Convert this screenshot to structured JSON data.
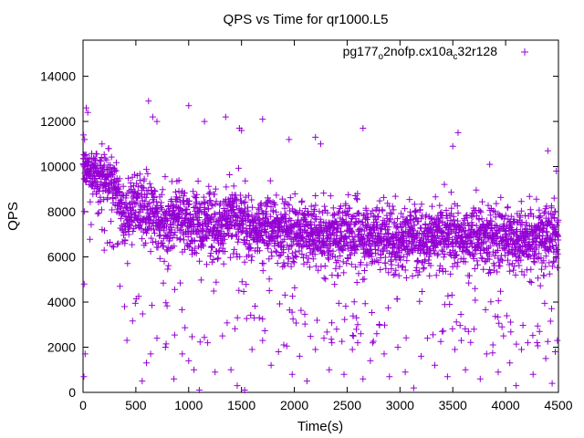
{
  "chart_data": {
    "type": "scatter",
    "title": "QPS vs Time for qr1000.L5",
    "xlabel": "Time(s)",
    "ylabel": "QPS",
    "xlim": [
      0,
      4500
    ],
    "ylim": [
      0,
      15600
    ],
    "xticks": [
      0,
      500,
      1000,
      1500,
      2000,
      2500,
      3000,
      3500,
      4000,
      4500
    ],
    "yticks": [
      0,
      2000,
      4000,
      6000,
      8000,
      10000,
      12000,
      14000
    ],
    "grid": false,
    "legend_position": "top-right",
    "marker": "+",
    "series": [
      {
        "name": "pg177_o2nofp.cx10a_c32r128",
        "name_parts": [
          "pg177",
          "o",
          "2nofp.cx10a",
          "c",
          "32r128"
        ],
        "color": "#9400d3",
        "band": {
          "x": [
            0,
            100,
            200,
            300,
            400,
            500,
            600,
            700,
            800,
            900,
            1000,
            1100,
            1200,
            1300,
            1400,
            1500,
            1600,
            1700,
            1800,
            1900,
            2000,
            2100,
            2200,
            2300,
            2400,
            2500,
            2600,
            2700,
            2800,
            2900,
            3000,
            3100,
            3200,
            3300,
            3400,
            3500,
            3600,
            3700,
            3800,
            3900,
            4000,
            4100,
            4200,
            4300,
            4400,
            4500
          ],
          "center": [
            9800,
            9700,
            9500,
            9300,
            7500,
            8200,
            8000,
            7800,
            7400,
            8000,
            7600,
            7400,
            7700,
            7300,
            7800,
            7600,
            7100,
            7400,
            7300,
            7200,
            7000,
            7200,
            7100,
            7000,
            6900,
            7100,
            7000,
            6900,
            7000,
            6900,
            6800,
            7000,
            6900,
            6800,
            7000,
            6900,
            6800,
            6900,
            7000,
            6800,
            6900,
            6800,
            6900,
            6800,
            7000,
            6900
          ],
          "spread": [
            1100,
            1000,
            1000,
            1100,
            1800,
            1700,
            1700,
            1600,
            1700,
            1700,
            1600,
            1700,
            1700,
            1700,
            1700,
            1600,
            1600,
            1600,
            1600,
            1600,
            1600,
            1600,
            1600,
            1600,
            1600,
            1600,
            1600,
            1600,
            1600,
            1600,
            1600,
            1600,
            1600,
            1600,
            1600,
            1600,
            1600,
            1600,
            1600,
            1600,
            1600,
            1600,
            1600,
            1600,
            1600,
            1600
          ],
          "count": 3000
        },
        "outliers": [
          [
            5,
            11400
          ],
          [
            15,
            11200
          ],
          [
            30,
            12600
          ],
          [
            45,
            12400
          ],
          [
            10,
            4800
          ],
          [
            20,
            1700
          ],
          [
            8,
            700
          ],
          [
            180,
            11000
          ],
          [
            240,
            10800
          ],
          [
            200,
            6300
          ],
          [
            620,
            12900
          ],
          [
            660,
            12200
          ],
          [
            700,
            12000
          ],
          [
            1000,
            12700
          ],
          [
            1150,
            12000
          ],
          [
            1480,
            11700
          ],
          [
            1500,
            11600
          ],
          [
            1700,
            12100
          ],
          [
            1950,
            11200
          ],
          [
            2200,
            11300
          ],
          [
            2250,
            11000
          ],
          [
            2650,
            11700
          ],
          [
            3550,
            11500
          ],
          [
            3500,
            10900
          ],
          [
            3850,
            10100
          ],
          [
            4400,
            10700
          ],
          [
            4480,
            9800
          ],
          [
            1350,
            12200
          ],
          [
            560,
            500
          ],
          [
            600,
            1300
          ],
          [
            640,
            1700
          ],
          [
            700,
            2400
          ],
          [
            780,
            2000
          ],
          [
            860,
            600
          ],
          [
            940,
            1700
          ],
          [
            1000,
            1400
          ],
          [
            1050,
            1000
          ],
          [
            1100,
            100
          ],
          [
            1180,
            2200
          ],
          [
            1250,
            900
          ],
          [
            1320,
            2500
          ],
          [
            1400,
            1000
          ],
          [
            1460,
            300
          ],
          [
            1530,
            100
          ],
          [
            1600,
            1900
          ],
          [
            1700,
            2300
          ],
          [
            1780,
            1200
          ],
          [
            1850,
            1800
          ],
          [
            1900,
            2100
          ],
          [
            1980,
            800
          ],
          [
            2050,
            1600
          ],
          [
            2120,
            500
          ],
          [
            2200,
            1900
          ],
          [
            2280,
            2400
          ],
          [
            2330,
            1000
          ],
          [
            2400,
            2800
          ],
          [
            2470,
            800
          ],
          [
            2550,
            1900
          ],
          [
            2600,
            2200
          ],
          [
            2650,
            600
          ],
          [
            2720,
            1400
          ],
          [
            2780,
            2600
          ],
          [
            2850,
            1700
          ],
          [
            2900,
            700
          ],
          [
            2980,
            2000
          ],
          [
            3050,
            900
          ],
          [
            3130,
            200
          ],
          [
            3200,
            1600
          ],
          [
            3260,
            2400
          ],
          [
            3330,
            1200
          ],
          [
            3400,
            2700
          ],
          [
            3450,
            700
          ],
          [
            3520,
            1900
          ],
          [
            3580,
            2300
          ],
          [
            3620,
            1000
          ],
          [
            3700,
            2800
          ],
          [
            3760,
            600
          ],
          [
            3820,
            1700
          ],
          [
            3880,
            2100
          ],
          [
            3930,
            900
          ],
          [
            3980,
            2500
          ],
          [
            4040,
            1300
          ],
          [
            4100,
            300
          ],
          [
            4150,
            1900
          ],
          [
            4210,
            2200
          ],
          [
            4260,
            800
          ],
          [
            4320,
            2700
          ],
          [
            4380,
            1500
          ],
          [
            4440,
            400
          ],
          [
            4490,
            2300
          ],
          [
            4470,
            1800
          ]
        ]
      }
    ]
  }
}
